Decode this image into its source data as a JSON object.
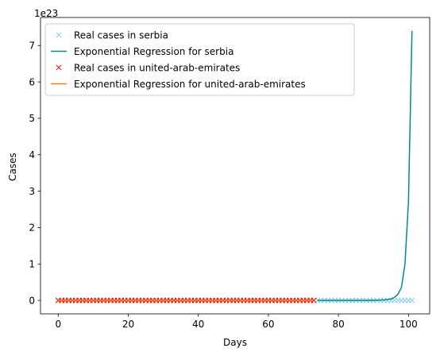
{
  "chart_data": {
    "type": "line",
    "xlabel": "Days",
    "ylabel": "Cases",
    "offset_text": "1e23",
    "xlim": [
      -5.05,
      106.05
    ],
    "ylim": [
      -0.37,
      7.77
    ],
    "y_unit_scale": "1e23",
    "x_ticks": [
      0,
      20,
      40,
      60,
      80,
      100
    ],
    "x_tick_labels": [
      "0",
      "20",
      "40",
      "60",
      "80",
      "100"
    ],
    "y_ticks": [
      0,
      1,
      2,
      3,
      4,
      5,
      6,
      7
    ],
    "y_tick_labels": [
      "0",
      "1",
      "2",
      "3",
      "4",
      "5",
      "6",
      "7"
    ],
    "grid": false,
    "legend_position": "upper-left",
    "series": [
      {
        "name": "Real cases in serbia",
        "kind": "markers",
        "marker": "x",
        "color": "#87ceeb",
        "x_start": 0,
        "x_end": 101,
        "x_step": 1,
        "y_constant": 0
      },
      {
        "name": "Exponential Regression for serbia",
        "kind": "line",
        "color": "#008b8b",
        "x": [
          74,
          80,
          85,
          88,
          90,
          92,
          93,
          94,
          95,
          96,
          97,
          98,
          99,
          100,
          101
        ],
        "y": [
          0,
          0.0001,
          0.0007,
          0.002,
          0.004,
          0.0098,
          0.015,
          0.024,
          0.04,
          0.083,
          0.17,
          0.36,
          1.0,
          2.72,
          7.4
        ]
      },
      {
        "name": "Real cases in united-arab-emirates",
        "kind": "markers",
        "marker": "x",
        "color": "#ff0000",
        "x_start": 0,
        "x_end": 73,
        "x_step": 1,
        "y_constant": 0
      },
      {
        "name": "Exponential Regression for united-arab-emirates",
        "kind": "line",
        "color": "#ff7f0e",
        "x": [
          0,
          73
        ],
        "y": [
          0,
          0
        ]
      }
    ]
  },
  "colors": {
    "axes": "#000000",
    "background": "#ffffff",
    "legend_border": "#cccccc"
  }
}
